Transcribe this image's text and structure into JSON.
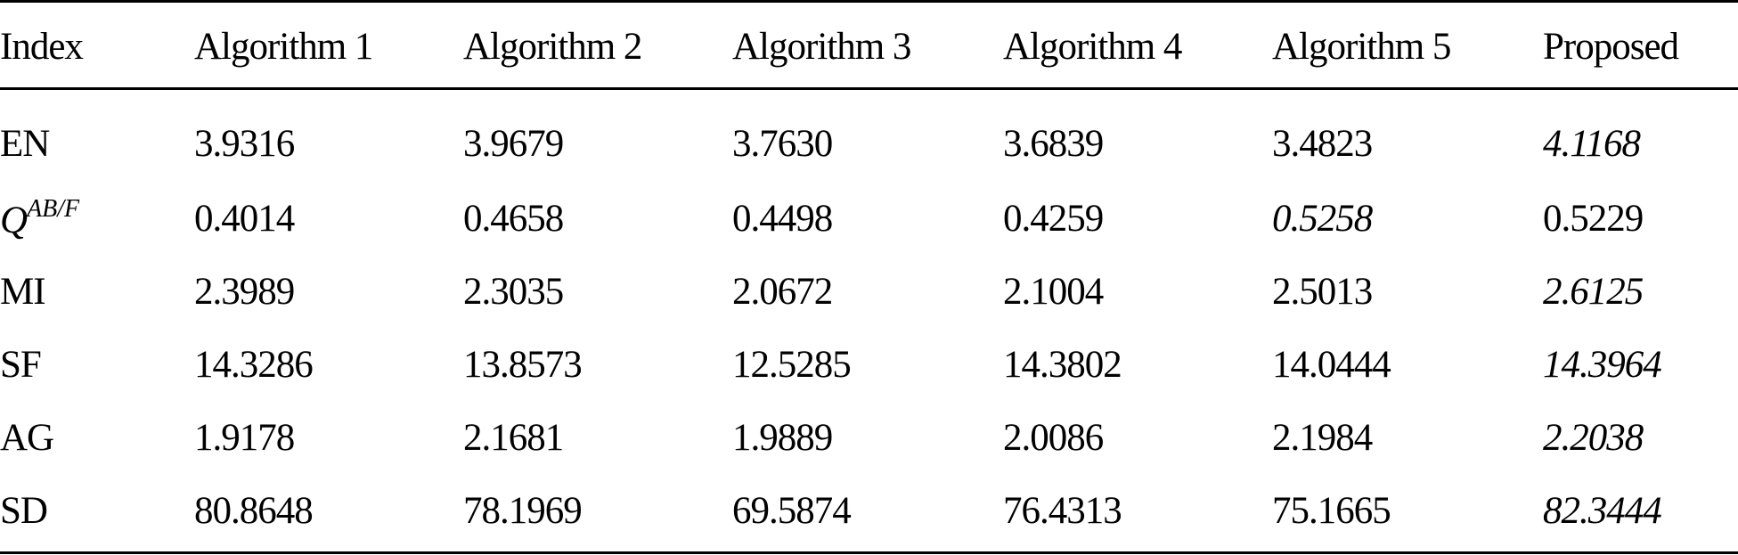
{
  "table": {
    "headers": [
      "Index",
      "Algorithm 1",
      "Algorithm 2",
      "Algorithm 3",
      "Algorithm 4",
      "Algorithm 5",
      "Proposed"
    ],
    "rows": [
      {
        "index": "EN",
        "values": [
          "3.9316",
          "3.9679",
          "3.7630",
          "3.6839",
          "3.4823",
          "4.1168"
        ],
        "best_col": 5
      },
      {
        "index_symbol": "Q",
        "index_superscript": "AB/F",
        "values": [
          "0.4014",
          "0.4658",
          "0.4498",
          "0.4259",
          "0.5258",
          "0.5229"
        ],
        "best_col": 4
      },
      {
        "index": "MI",
        "values": [
          "2.3989",
          "2.3035",
          "2.0672",
          "2.1004",
          "2.5013",
          "2.6125"
        ],
        "best_col": 5
      },
      {
        "index": "SF",
        "values": [
          "14.3286",
          "13.8573",
          "12.5285",
          "14.3802",
          "14.0444",
          "14.3964"
        ],
        "best_col": 5
      },
      {
        "index": "AG",
        "values": [
          "1.9178",
          "2.1681",
          "1.9889",
          "2.0086",
          "2.1984",
          "2.2038"
        ],
        "best_col": 5
      },
      {
        "index": "SD",
        "values": [
          "80.8648",
          "78.1969",
          "69.5874",
          "76.4313",
          "75.1665",
          "82.3444"
        ],
        "best_col": 5
      }
    ]
  }
}
